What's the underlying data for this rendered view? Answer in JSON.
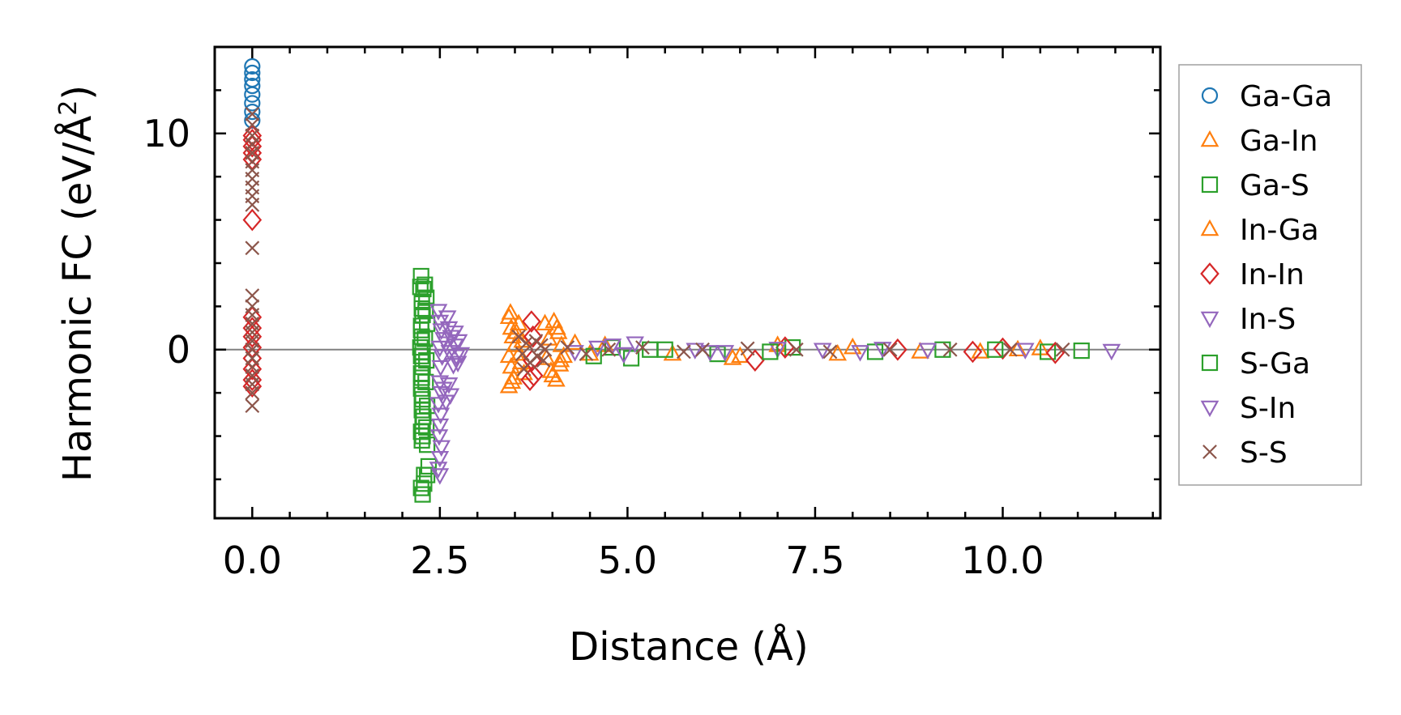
{
  "chart_data": {
    "type": "scatter",
    "xlabel": "Distance (Å)",
    "ylabel_main": "Harmonic FC (eV/Å",
    "ylabel_sup": "2",
    "ylabel_end": ")",
    "xlim": [
      -0.5,
      12.1
    ],
    "ylim": [
      -7.8,
      14.0
    ],
    "x_ticks": [
      0.0,
      2.5,
      5.0,
      7.5,
      10.0
    ],
    "x_tick_labels": [
      "0.0",
      "2.5",
      "5.0",
      "7.5",
      "10.0"
    ],
    "x_minor_step": 0.5,
    "y_ticks": [
      0,
      10
    ],
    "y_tick_labels": [
      "0",
      "10"
    ],
    "y_minor_step": 2,
    "zero_line": true,
    "grid": false,
    "legend_position": "outside-right",
    "series": [
      {
        "name": "Ga-Ga",
        "marker": "circle",
        "color": "#1f77b4",
        "points": [
          [
            0,
            13.1
          ],
          [
            0,
            12.8
          ],
          [
            0,
            12.5
          ],
          [
            0,
            12.2
          ],
          [
            0,
            11.8
          ],
          [
            0,
            11.4
          ],
          [
            0,
            11.0
          ],
          [
            0,
            10.6
          ]
        ]
      },
      {
        "name": "Ga-In",
        "marker": "triangle-up",
        "color": "#ff7f0e",
        "points": [
          [
            3.42,
            1.5
          ],
          [
            3.45,
            1.0
          ],
          [
            3.47,
            0.6
          ],
          [
            3.5,
            0.2
          ],
          [
            3.42,
            -0.3
          ],
          [
            3.45,
            -0.8
          ],
          [
            3.48,
            -1.3
          ],
          [
            3.42,
            -1.7
          ],
          [
            3.55,
            1.2
          ],
          [
            3.6,
            0.4
          ],
          [
            3.58,
            -0.6
          ],
          [
            3.62,
            -1.1
          ],
          [
            3.9,
            1.2
          ],
          [
            3.95,
            0.5
          ],
          [
            3.92,
            -0.4
          ],
          [
            3.98,
            -1.0
          ],
          [
            4.02,
            1.3
          ],
          [
            4.05,
            -1.4
          ],
          [
            4.08,
            0.8
          ],
          [
            4.1,
            -0.7
          ],
          [
            4.12,
            0.2
          ],
          [
            4.15,
            -0.3
          ],
          [
            4.3,
            0.3
          ],
          [
            4.5,
            -0.2
          ],
          [
            4.7,
            0.2
          ],
          [
            5.6,
            -0.2
          ],
          [
            6.4,
            -0.4
          ],
          [
            7.0,
            0.2
          ],
          [
            7.8,
            -0.2
          ],
          [
            8.9,
            -0.1
          ],
          [
            10.2,
            0.0
          ],
          [
            10.5,
            0.05
          ]
        ]
      },
      {
        "name": "Ga-S",
        "marker": "square",
        "color": "#2ca02c",
        "points": [
          [
            2.25,
            3.4
          ],
          [
            2.28,
            2.8
          ],
          [
            2.26,
            2.2
          ],
          [
            2.27,
            1.6
          ],
          [
            2.25,
            1.1
          ],
          [
            2.26,
            0.6
          ],
          [
            2.24,
            0.1
          ],
          [
            2.25,
            -0.3
          ],
          [
            2.27,
            -0.8
          ],
          [
            2.26,
            -1.3
          ],
          [
            2.25,
            -1.8
          ],
          [
            2.27,
            -2.3
          ],
          [
            2.26,
            -2.8
          ],
          [
            2.27,
            -3.3
          ],
          [
            2.25,
            -3.8
          ],
          [
            2.26,
            -4.2
          ],
          [
            2.25,
            -6.4
          ],
          [
            2.27,
            -6.7
          ],
          [
            2.29,
            -6.2
          ],
          [
            2.33,
            -5.8
          ],
          [
            2.35,
            -5.4
          ],
          [
            2.3,
            3.0
          ],
          [
            2.32,
            2.4
          ],
          [
            2.31,
            1.8
          ],
          [
            2.33,
            1.2
          ],
          [
            2.3,
            0.5
          ],
          [
            2.32,
            -0.5
          ],
          [
            2.31,
            -1.5
          ],
          [
            2.33,
            -2.6
          ],
          [
            2.32,
            -3.6
          ],
          [
            2.33,
            -4.4
          ],
          [
            4.55,
            -0.3
          ],
          [
            4.8,
            0.1
          ],
          [
            5.05,
            -0.4
          ],
          [
            5.5,
            0.0
          ],
          [
            6.2,
            -0.2
          ],
          [
            7.2,
            0.1
          ],
          [
            8.3,
            -0.1
          ],
          [
            9.2,
            0.0
          ],
          [
            10.6,
            -0.1
          ],
          [
            11.05,
            -0.05
          ]
        ]
      },
      {
        "name": "In-Ga",
        "marker": "triangle-up",
        "color": "#ff7f0e",
        "points": [
          [
            3.44,
            1.7
          ],
          [
            3.46,
            -1.5
          ],
          [
            3.52,
            0.8
          ],
          [
            3.56,
            -0.2
          ],
          [
            4.0,
            -1.2
          ],
          [
            4.06,
            1.0
          ],
          [
            4.11,
            -0.5
          ],
          [
            6.5,
            -0.3
          ],
          [
            8.0,
            0.1
          ],
          [
            9.7,
            -0.1
          ]
        ]
      },
      {
        "name": "In-In",
        "marker": "diamond",
        "color": "#d62728",
        "points": [
          [
            0,
            9.9
          ],
          [
            0,
            9.7
          ],
          [
            0,
            9.4
          ],
          [
            0,
            9.1
          ],
          [
            0,
            8.8
          ],
          [
            0,
            6.0
          ],
          [
            0,
            1.5
          ],
          [
            0,
            1.0
          ],
          [
            0,
            0.6
          ],
          [
            0,
            0.1
          ],
          [
            0,
            -0.4
          ],
          [
            0,
            -0.9
          ],
          [
            0,
            -1.4
          ],
          [
            0,
            -1.7
          ],
          [
            3.72,
            1.3
          ],
          [
            3.74,
            0.6
          ],
          [
            3.73,
            -0.5
          ],
          [
            3.75,
            -1.2
          ],
          [
            3.7,
            -1.4
          ],
          [
            6.7,
            -0.5
          ],
          [
            7.1,
            0.1
          ],
          [
            8.6,
            0.0
          ],
          [
            9.6,
            -0.1
          ],
          [
            10.0,
            0.05
          ],
          [
            10.7,
            -0.15
          ]
        ]
      },
      {
        "name": "In-S",
        "marker": "triangle-down",
        "color": "#9467bd",
        "points": [
          [
            2.48,
            1.8
          ],
          [
            2.5,
            1.3
          ],
          [
            2.52,
            0.9
          ],
          [
            2.55,
            0.5
          ],
          [
            2.5,
            0.1
          ],
          [
            2.53,
            -0.3
          ],
          [
            2.51,
            -0.8
          ],
          [
            2.6,
            1.5
          ],
          [
            2.62,
            1.0
          ],
          [
            2.65,
            0.6
          ],
          [
            2.7,
            0.2
          ],
          [
            2.72,
            -0.3
          ],
          [
            2.68,
            -0.7
          ],
          [
            2.75,
            0.4
          ],
          [
            2.78,
            -0.2
          ],
          [
            4.3,
            -0.1
          ],
          [
            4.6,
            0.1
          ],
          [
            4.95,
            -0.2
          ],
          [
            5.1,
            0.3
          ],
          [
            5.9,
            0.0
          ],
          [
            6.1,
            -0.1
          ],
          [
            7.0,
            0.05
          ],
          [
            7.6,
            0.0
          ],
          [
            8.1,
            -0.1
          ],
          [
            9.0,
            0.0
          ],
          [
            11.45,
            -0.05
          ]
        ]
      },
      {
        "name": "S-Ga",
        "marker": "square",
        "color": "#2ca02c",
        "points": [
          [
            2.24,
            2.9
          ],
          [
            2.26,
            1.9
          ],
          [
            2.25,
            0.9
          ],
          [
            2.27,
            -0.1
          ],
          [
            2.25,
            -1.1
          ],
          [
            2.26,
            -2.1
          ],
          [
            2.28,
            -3.1
          ],
          [
            2.27,
            -4.0
          ],
          [
            2.29,
            -5.8
          ],
          [
            5.3,
            0.0
          ],
          [
            6.9,
            -0.1
          ],
          [
            9.9,
            0.0
          ]
        ]
      },
      {
        "name": "S-In",
        "marker": "triangle-down",
        "color": "#9467bd",
        "points": [
          [
            2.5,
            -1.5
          ],
          [
            2.52,
            -2.0
          ],
          [
            2.48,
            -2.5
          ],
          [
            2.51,
            -3.0
          ],
          [
            2.5,
            -3.5
          ],
          [
            2.49,
            -4.0
          ],
          [
            2.52,
            -4.5
          ],
          [
            2.5,
            -5.0
          ],
          [
            2.48,
            -5.5
          ],
          [
            2.5,
            -5.8
          ],
          [
            2.55,
            -1.8
          ],
          [
            2.58,
            -2.4
          ],
          [
            2.62,
            -1.6
          ],
          [
            2.64,
            -2.1
          ],
          [
            2.58,
            0.3
          ],
          [
            2.63,
            -0.1
          ],
          [
            2.7,
            0.8
          ],
          [
            2.74,
            -0.6
          ],
          [
            4.8,
            0.2
          ],
          [
            6.3,
            -0.1
          ],
          [
            8.4,
            0.05
          ],
          [
            10.3,
            0.0
          ]
        ]
      },
      {
        "name": "S-S",
        "marker": "x",
        "color": "#8c564b",
        "points": [
          [
            0,
            10.9
          ],
          [
            0,
            10.4
          ],
          [
            0,
            9.9
          ],
          [
            0,
            9.5
          ],
          [
            0,
            9.1
          ],
          [
            0,
            8.7
          ],
          [
            0,
            8.3
          ],
          [
            0,
            7.9
          ],
          [
            0,
            7.5
          ],
          [
            0,
            7.1
          ],
          [
            0,
            6.7
          ],
          [
            0,
            4.7
          ],
          [
            0,
            2.5
          ],
          [
            0,
            2.0
          ],
          [
            0,
            1.6
          ],
          [
            0,
            1.2
          ],
          [
            0,
            0.8
          ],
          [
            0,
            0.4
          ],
          [
            0,
            0.0
          ],
          [
            0,
            -0.4
          ],
          [
            0,
            -0.8
          ],
          [
            0,
            -1.2
          ],
          [
            0,
            -1.6
          ],
          [
            0,
            -2.0
          ],
          [
            0,
            -2.6
          ],
          [
            3.55,
            0.6
          ],
          [
            3.6,
            -0.2
          ],
          [
            3.65,
            0.3
          ],
          [
            3.7,
            -0.6
          ],
          [
            3.78,
            0.4
          ],
          [
            3.8,
            -0.3
          ],
          [
            3.85,
            0.2
          ],
          [
            3.88,
            -0.5
          ],
          [
            3.9,
            0.0
          ],
          [
            3.62,
            -0.9
          ],
          [
            4.2,
            0.1
          ],
          [
            4.45,
            -0.2
          ],
          [
            4.75,
            0.0
          ],
          [
            5.2,
            0.1
          ],
          [
            5.75,
            -0.1
          ],
          [
            6.0,
            0.0
          ],
          [
            6.6,
            0.05
          ],
          [
            7.25,
            0.0
          ],
          [
            7.7,
            -0.1
          ],
          [
            8.5,
            0.0
          ],
          [
            9.3,
            0.0
          ],
          [
            10.1,
            0.0
          ],
          [
            10.8,
            0.0
          ]
        ]
      }
    ]
  }
}
